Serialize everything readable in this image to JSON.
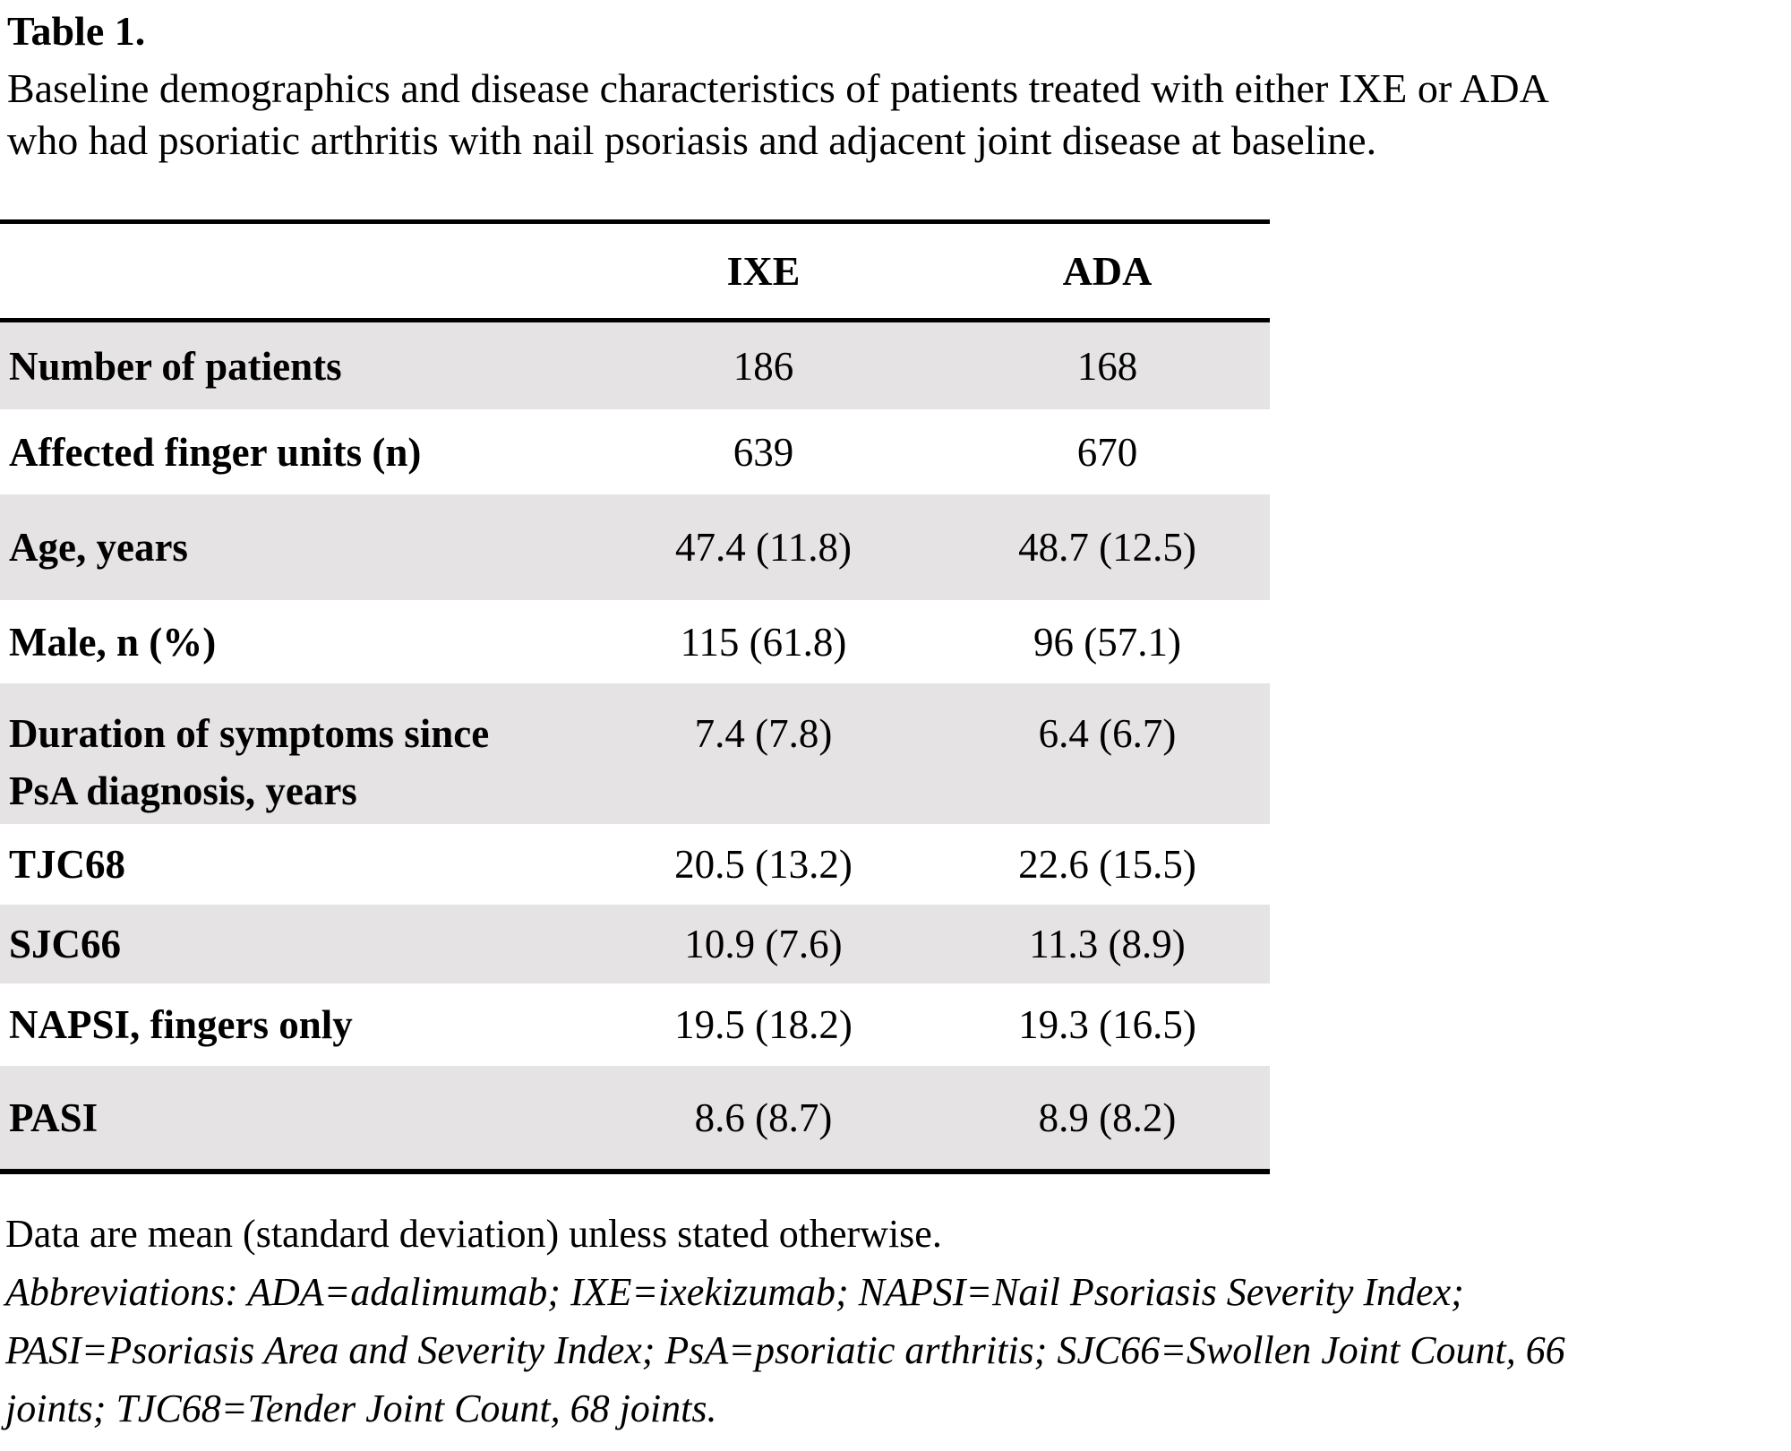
{
  "title": "Table 1.",
  "caption": {
    "lines": [
      "Baseline demographics and disease characteristics of patients treated with either IXE or ADA",
      "who had psoriatic arthritis with nail psoriasis and adjacent joint disease at baseline."
    ]
  },
  "table": {
    "col_headers": {
      "ixe": "IXE",
      "ada": "ADA"
    },
    "rows": [
      {
        "label": "Number of patients",
        "ixe": "186",
        "ada": "168"
      },
      {
        "label": "Affected finger units (n)",
        "ixe": "639",
        "ada": "670"
      },
      {
        "label": "Age, years",
        "ixe": "47.4 (11.8)",
        "ada": "48.7 (12.5)"
      },
      {
        "label": "Male, n (%)",
        "ixe": "115 (61.8)",
        "ada": "96 (57.1)"
      },
      {
        "label": "Duration of symptoms since\nPsA diagnosis, years",
        "ixe": "7.4 (7.8)",
        "ada": "6.4 (6.7)"
      },
      {
        "label": "TJC68",
        "ixe": "20.5 (13.2)",
        "ada": "22.6 (15.5)"
      },
      {
        "label": "SJC66",
        "ixe": "10.9 (7.6)",
        "ada": "11.3 (8.9)"
      },
      {
        "label": "NAPSI, fingers only",
        "ixe": "19.5 (18.2)",
        "ada": "19.3 (16.5)"
      },
      {
        "label": "PASI",
        "ixe": "8.6 (8.7)",
        "ada": "8.9 (8.2)"
      }
    ]
  },
  "footnotes": {
    "data_note": "Data are mean (standard deviation) unless stated otherwise.",
    "abbreviations_lines": [
      "Abbreviations: ADA=adalimumab; IXE=ixekizumab; NAPSI=Nail Psoriasis Severity Index;",
      "PASI=Psoriasis Area and Severity Index; PsA=psoriatic arthritis; SJC66=Swollen Joint Count, 66",
      "joints; TJC68=Tender Joint Count, 68 joints."
    ]
  },
  "colors": {
    "row_shade": "#e5e3e4",
    "border": "#000000",
    "text": "#000000"
  }
}
